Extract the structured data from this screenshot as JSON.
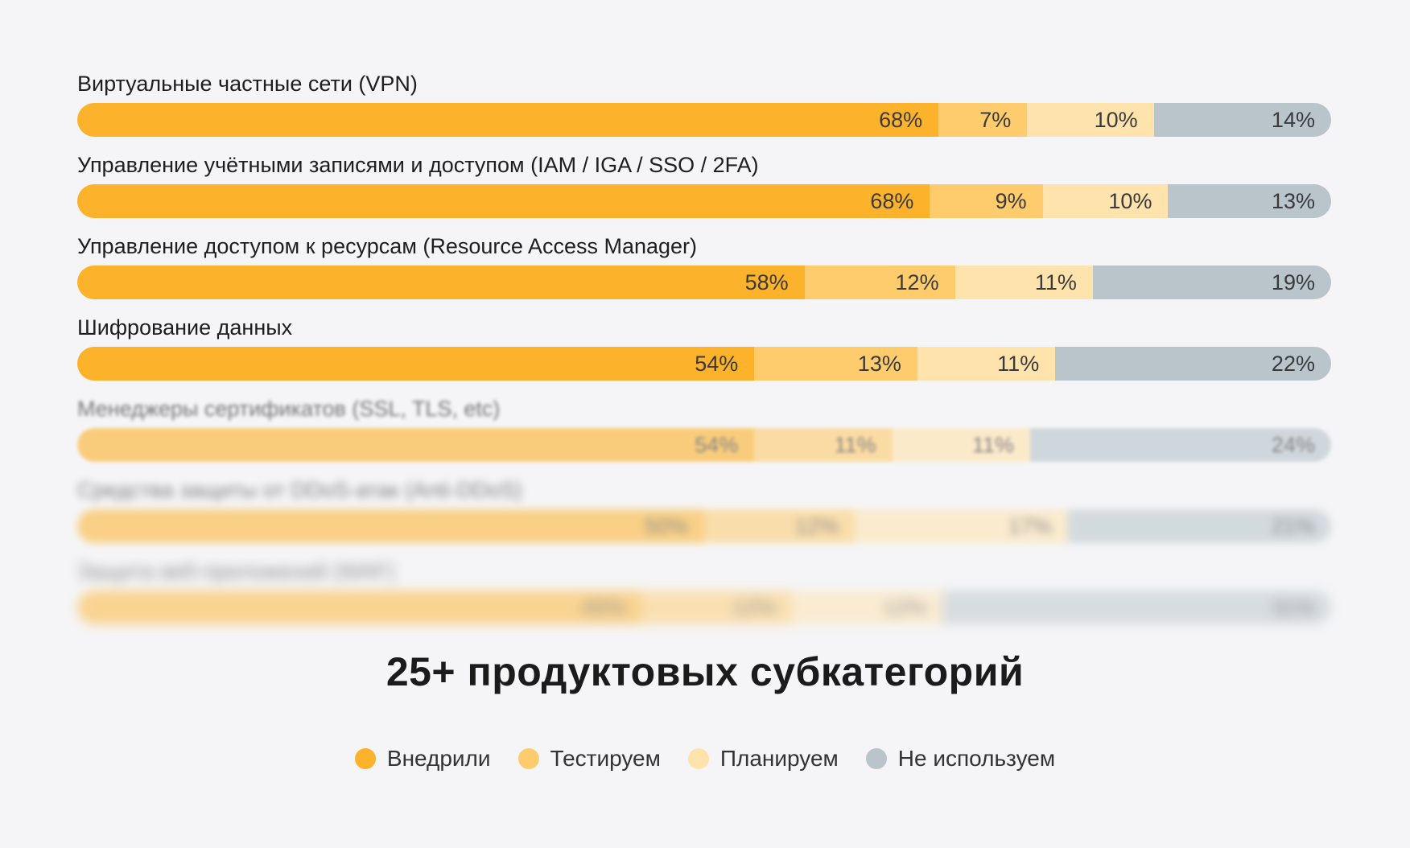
{
  "colors": {
    "implemented": "#fdb22b",
    "testing": "#fecb6d",
    "planning": "#ffe3ad",
    "not_used": "#b9c4cb"
  },
  "chart_data": {
    "type": "bar",
    "orientation": "horizontal-stacked-100",
    "title": "25+ продуктовых субкатегорий",
    "legend_position": "bottom",
    "series_names": [
      "Внедрили",
      "Тестируем",
      "Планируем",
      "Не используем"
    ],
    "categories": [
      "Виртуальные частные сети (VPN)",
      "Управление учётными записями и доступом (IAM / IGA / SSO / 2FA)",
      "Управление доступом к ресурсам (Resource Access Manager)",
      "Шифрование данных",
      "Менеджеры сертификатов (SSL, TLS, etc)",
      "Средства защиты от DDoS-атак (Anti-DDoS)",
      "Защита веб-приложений (WAF)"
    ],
    "values": [
      [
        68,
        7,
        10,
        14
      ],
      [
        68,
        9,
        10,
        13
      ],
      [
        58,
        12,
        11,
        19
      ],
      [
        54,
        13,
        11,
        22
      ],
      [
        54,
        11,
        11,
        24
      ],
      [
        50,
        12,
        17,
        21
      ],
      [
        45,
        12,
        12,
        31
      ]
    ],
    "blurred_rows": [
      4,
      5,
      6
    ]
  },
  "legend": [
    "Внедрили",
    "Тестируем",
    "Планируем",
    "Не используем"
  ]
}
